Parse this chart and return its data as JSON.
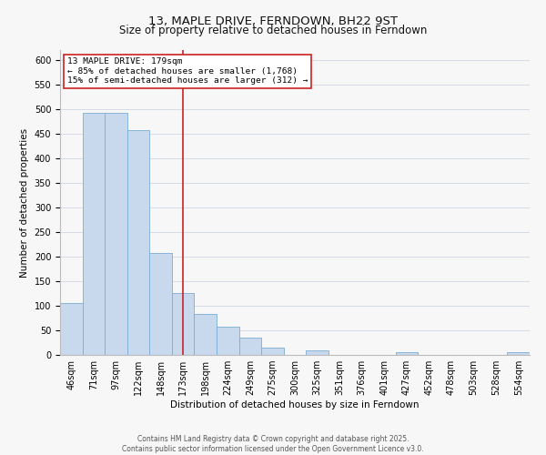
{
  "title": "13, MAPLE DRIVE, FERNDOWN, BH22 9ST",
  "subtitle": "Size of property relative to detached houses in Ferndown",
  "xlabel": "Distribution of detached houses by size in Ferndown",
  "ylabel": "Number of detached properties",
  "bar_labels": [
    "46sqm",
    "71sqm",
    "97sqm",
    "122sqm",
    "148sqm",
    "173sqm",
    "198sqm",
    "224sqm",
    "249sqm",
    "275sqm",
    "300sqm",
    "325sqm",
    "351sqm",
    "376sqm",
    "401sqm",
    "427sqm",
    "452sqm",
    "478sqm",
    "503sqm",
    "528sqm",
    "554sqm"
  ],
  "bar_values": [
    105,
    492,
    492,
    457,
    208,
    125,
    83,
    58,
    36,
    15,
    0,
    10,
    0,
    0,
    0,
    5,
    0,
    0,
    0,
    0,
    5
  ],
  "bar_color": "#c8d9ee",
  "bar_edge_color": "#7aadd4",
  "vline_index": 5,
  "vline_color": "#cc2222",
  "annotation_title": "13 MAPLE DRIVE: 179sqm",
  "annotation_line1": "← 85% of detached houses are smaller (1,768)",
  "annotation_line2": "15% of semi-detached houses are larger (312) →",
  "annotation_box_edge_color": "#cc2222",
  "ylim": [
    0,
    620
  ],
  "yticks": [
    0,
    50,
    100,
    150,
    200,
    250,
    300,
    350,
    400,
    450,
    500,
    550,
    600
  ],
  "footer_line1": "Contains HM Land Registry data © Crown copyright and database right 2025.",
  "footer_line2": "Contains public sector information licensed under the Open Government Licence v3.0.",
  "bg_color": "#f7f7f7",
  "grid_color": "#d4dce8",
  "title_fontsize": 9.5,
  "subtitle_fontsize": 8.5,
  "axis_label_fontsize": 7.5,
  "tick_fontsize": 7,
  "annotation_fontsize": 6.8,
  "footer_fontsize": 5.5
}
